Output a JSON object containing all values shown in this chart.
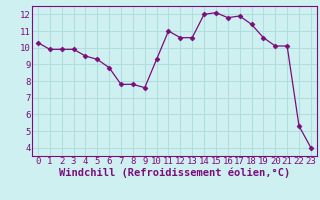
{
  "x": [
    0,
    1,
    2,
    3,
    4,
    5,
    6,
    7,
    8,
    9,
    10,
    11,
    12,
    13,
    14,
    15,
    16,
    17,
    18,
    19,
    20,
    21,
    22,
    23
  ],
  "y": [
    10.3,
    9.9,
    9.9,
    9.9,
    9.5,
    9.3,
    8.8,
    7.8,
    7.8,
    7.6,
    9.3,
    11.0,
    10.6,
    10.6,
    12.0,
    12.1,
    11.8,
    11.9,
    11.4,
    10.6,
    10.1,
    10.1,
    5.3,
    4.0
  ],
  "line_color": "#7B0D7B",
  "marker": "D",
  "marker_size": 2.5,
  "bg_color": "#cff0f0",
  "grid_color": "#b0dede",
  "xlabel": "Windchill (Refroidissement éolien,°C)",
  "xlim": [
    -0.5,
    23.5
  ],
  "ylim": [
    3.5,
    12.5
  ],
  "yticks": [
    4,
    5,
    6,
    7,
    8,
    9,
    10,
    11,
    12
  ],
  "xticks": [
    0,
    1,
    2,
    3,
    4,
    5,
    6,
    7,
    8,
    9,
    10,
    11,
    12,
    13,
    14,
    15,
    16,
    17,
    18,
    19,
    20,
    21,
    22,
    23
  ],
  "tick_label_fontsize": 6.5,
  "xlabel_fontsize": 7.5
}
